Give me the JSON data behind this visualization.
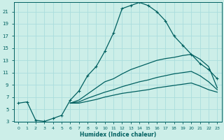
{
  "xlabel": "Humidex (Indice chaleur)",
  "bg_color": "#cceee8",
  "line_color": "#006060",
  "grid_color": "#aadddd",
  "xlim": [
    -0.5,
    23.5
  ],
  "ylim": [
    3,
    22.5
  ],
  "xticks": [
    0,
    1,
    2,
    3,
    4,
    5,
    6,
    7,
    8,
    9,
    10,
    11,
    12,
    13,
    14,
    15,
    16,
    17,
    18,
    19,
    20,
    21,
    22,
    23
  ],
  "yticks": [
    3,
    5,
    7,
    9,
    11,
    13,
    15,
    17,
    19,
    21
  ],
  "curve1_x": [
    0,
    1,
    2,
    3,
    4,
    5,
    6,
    7,
    8,
    9,
    10,
    11,
    12,
    13,
    14,
    15,
    16,
    17,
    18,
    19,
    20,
    21,
    22,
    23
  ],
  "curve1_y": [
    6.0,
    6.2,
    3.2,
    3.0,
    3.5,
    4.0,
    6.5,
    8.0,
    10.5,
    12.0,
    14.5,
    17.5,
    21.5,
    22.0,
    22.5,
    22.0,
    21.0,
    19.5,
    17.0,
    15.5,
    14.0,
    12.5,
    11.5,
    10.0
  ],
  "curve2_x": [
    6,
    7,
    8,
    9,
    10,
    11,
    12,
    13,
    14,
    15,
    16,
    17,
    18,
    19,
    20,
    21,
    22,
    23
  ],
  "curve2_y": [
    6.0,
    6.5,
    7.5,
    8.5,
    9.5,
    10.0,
    10.8,
    11.5,
    12.0,
    12.5,
    13.0,
    13.3,
    13.5,
    13.8,
    14.0,
    13.2,
    12.0,
    8.5
  ],
  "curve3_x": [
    6,
    7,
    8,
    9,
    10,
    11,
    12,
    13,
    14,
    15,
    16,
    17,
    18,
    19,
    20,
    21,
    22,
    23
  ],
  "curve3_y": [
    6.0,
    6.2,
    6.8,
    7.3,
    7.8,
    8.2,
    8.7,
    9.1,
    9.5,
    9.8,
    10.2,
    10.5,
    10.8,
    11.0,
    11.2,
    10.5,
    9.5,
    8.2
  ],
  "curve4_x": [
    6,
    7,
    8,
    9,
    10,
    11,
    12,
    13,
    14,
    15,
    16,
    17,
    18,
    19,
    20,
    21,
    22,
    23
  ],
  "curve4_y": [
    6.0,
    6.0,
    6.3,
    6.6,
    7.0,
    7.3,
    7.6,
    7.8,
    8.0,
    8.2,
    8.5,
    8.7,
    8.9,
    9.1,
    9.3,
    8.8,
    8.2,
    7.8
  ]
}
